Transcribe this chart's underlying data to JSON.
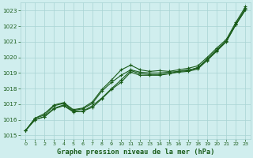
{
  "x": [
    0,
    1,
    2,
    3,
    4,
    5,
    6,
    7,
    8,
    9,
    10,
    11,
    12,
    13,
    14,
    15,
    16,
    17,
    18,
    19,
    20,
    21,
    22,
    23
  ],
  "line1": [
    1015.3,
    1016.1,
    1016.3,
    1016.9,
    1017.05,
    1016.6,
    1016.7,
    1017.05,
    1017.85,
    1018.4,
    1018.85,
    1019.2,
    1019.05,
    1019.0,
    1019.0,
    1019.05,
    1019.1,
    1019.2,
    1019.3,
    1019.9,
    1020.5,
    1021.05,
    1022.15,
    1023.15
  ],
  "line2": [
    1015.3,
    1016.0,
    1016.2,
    1016.75,
    1016.95,
    1016.55,
    1016.55,
    1016.8,
    1017.35,
    1017.95,
    1018.4,
    1019.05,
    1018.85,
    1018.85,
    1018.85,
    1018.95,
    1019.05,
    1019.1,
    1019.25,
    1019.8,
    1020.4,
    1021.0,
    1022.1,
    1023.05
  ],
  "line3": [
    1015.3,
    1016.0,
    1016.2,
    1016.7,
    1016.9,
    1016.5,
    1016.55,
    1016.9,
    1017.4,
    1018.0,
    1018.55,
    1019.15,
    1018.95,
    1018.9,
    1018.9,
    1018.95,
    1019.1,
    1019.15,
    1019.35,
    1019.85,
    1020.45,
    1021.05,
    1022.1,
    1023.05
  ],
  "line_top": [
    1015.3,
    1016.1,
    1016.4,
    1016.95,
    1017.1,
    1016.65,
    1016.75,
    1017.15,
    1017.95,
    1018.55,
    1019.2,
    1019.5,
    1019.2,
    1019.1,
    1019.15,
    1019.1,
    1019.2,
    1019.3,
    1019.45,
    1020.0,
    1020.6,
    1021.15,
    1022.25,
    1023.25
  ],
  "bg_color": "#d0eeee",
  "grid_color": "#a8d4d4",
  "line_color": "#1a5c1a",
  "title": "Graphe pression niveau de la mer (hPa)",
  "ylim_min": 1014.75,
  "ylim_max": 1023.5,
  "yticks": [
    1015,
    1016,
    1017,
    1018,
    1019,
    1020,
    1021,
    1022,
    1023
  ],
  "xticks": [
    0,
    1,
    2,
    3,
    4,
    5,
    6,
    7,
    8,
    9,
    10,
    11,
    12,
    13,
    14,
    15,
    16,
    17,
    18,
    19,
    20,
    21,
    22,
    23
  ]
}
